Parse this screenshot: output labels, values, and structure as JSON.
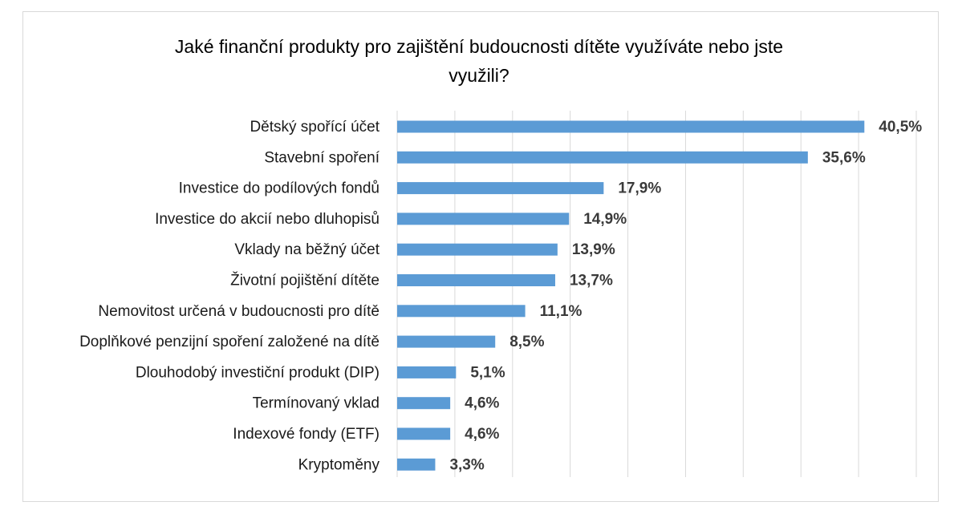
{
  "chart_data": {
    "type": "bar",
    "orientation": "horizontal",
    "title_lines": [
      "Jaké finanční produkty pro zajištění budoucnosti dítěte využíváte nebo jste",
      "využili?"
    ],
    "categories": [
      "Dětský spořící účet",
      "Stavební spoření",
      "Investice do podílových fondů",
      "Investice do akcií nebo dluhopisů",
      "Vklady na běžný účet",
      "Životní pojištění dítěte",
      "Nemovitost určená v budoucnosti pro dítě",
      "Doplňkové penzijní spoření založené na dítě",
      "Dlouhodobý investiční produkt (DIP)",
      "Termínovaný vklad",
      "Indexové fondy (ETF)",
      "Kryptoměny"
    ],
    "values": [
      40.5,
      35.6,
      17.9,
      14.9,
      13.9,
      13.7,
      11.1,
      8.5,
      5.1,
      4.6,
      4.6,
      3.3
    ],
    "value_labels": [
      "40,5%",
      "35,6%",
      "17,9%",
      "14,9%",
      "13,9%",
      "13,7%",
      "11,1%",
      "8,5%",
      "5,1%",
      "4,6%",
      "4,6%",
      "3,3%"
    ],
    "xlim": [
      0,
      45
    ],
    "x_gridlines": [
      0,
      5,
      10,
      15,
      20,
      25,
      30,
      35,
      40,
      45
    ],
    "grid": true,
    "legend": false,
    "bar_color": "#5b9bd5",
    "grid_color": "#d9d9d9"
  }
}
